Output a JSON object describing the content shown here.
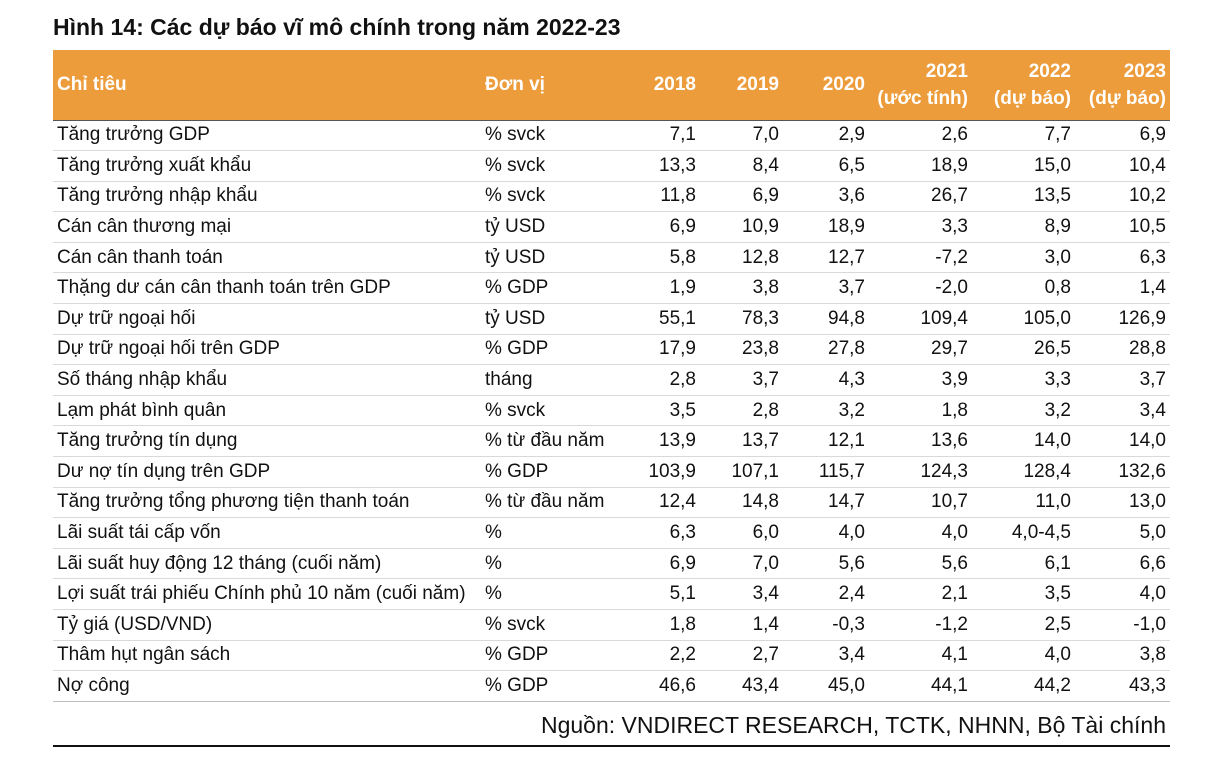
{
  "title": "Hình 14: Các dự báo vĩ mô chính trong năm 2022-23",
  "colors": {
    "header_bg": "#ED9C3B",
    "header_text": "#ffffff"
  },
  "headers": {
    "indicator": "Chỉ tiêu",
    "unit": "Đơn vị",
    "y2018": "2018",
    "y2019": "2019",
    "y2020": "2020",
    "y2021": "2021",
    "y2021_note": "(ước tính)",
    "y2022": "2022",
    "y2022_note": "(dự báo)",
    "y2023": "2023",
    "y2023_note": "(dự báo)"
  },
  "rows": [
    {
      "name": "Tăng trưởng GDP",
      "unit": "% svck",
      "v": [
        "7,1",
        "7,0",
        "2,9",
        "2,6",
        "7,7",
        "6,9"
      ]
    },
    {
      "name": "Tăng trưởng xuất khẩu",
      "unit": "% svck",
      "v": [
        "13,3",
        "8,4",
        "6,5",
        "18,9",
        "15,0",
        "10,4"
      ]
    },
    {
      "name": "Tăng trưởng nhập khẩu",
      "unit": "% svck",
      "v": [
        "11,8",
        "6,9",
        "3,6",
        "26,7",
        "13,5",
        "10,2"
      ]
    },
    {
      "name": "Cán cân thương mại",
      "unit": "tỷ USD",
      "v": [
        "6,9",
        "10,9",
        "18,9",
        "3,3",
        "8,9",
        "10,5"
      ]
    },
    {
      "name": "Cán cân thanh toán",
      "unit": "tỷ USD",
      "v": [
        "5,8",
        "12,8",
        "12,7",
        "-7,2",
        "3,0",
        "6,3"
      ]
    },
    {
      "name": "Thặng dư cán cân thanh toán trên GDP",
      "unit": "% GDP",
      "v": [
        "1,9",
        "3,8",
        "3,7",
        "-2,0",
        "0,8",
        "1,4"
      ]
    },
    {
      "name": "Dự trữ ngoại hối",
      "unit": "tỷ USD",
      "v": [
        "55,1",
        "78,3",
        "94,8",
        "109,4",
        "105,0",
        "126,9"
      ]
    },
    {
      "name": "Dự trữ ngoại hối trên GDP",
      "unit": "% GDP",
      "v": [
        "17,9",
        "23,8",
        "27,8",
        "29,7",
        "26,5",
        "28,8"
      ]
    },
    {
      "name": "Số tháng nhập khẩu",
      "unit": "tháng",
      "v": [
        "2,8",
        "3,7",
        "4,3",
        "3,9",
        "3,3",
        "3,7"
      ]
    },
    {
      "name": "Lạm phát bình quân",
      "unit": "% svck",
      "v": [
        "3,5",
        "2,8",
        "3,2",
        "1,8",
        "3,2",
        "3,4"
      ]
    },
    {
      "name": "Tăng trưởng tín dụng",
      "unit": "% từ đầu năm",
      "v": [
        "13,9",
        "13,7",
        "12,1",
        "13,6",
        "14,0",
        "14,0"
      ]
    },
    {
      "name": "Dư nợ tín dụng trên GDP",
      "unit": "% GDP",
      "v": [
        "103,9",
        "107,1",
        "115,7",
        "124,3",
        "128,4",
        "132,6"
      ]
    },
    {
      "name": "Tăng trưởng tổng phương tiện thanh toán",
      "unit": "% từ đầu năm",
      "v": [
        "12,4",
        "14,8",
        "14,7",
        "10,7",
        "11,0",
        "13,0"
      ]
    },
    {
      "name": "Lãi suất tái cấp vốn",
      "unit": "%",
      "v": [
        "6,3",
        "6,0",
        "4,0",
        "4,0",
        "4,0-4,5",
        "5,0"
      ]
    },
    {
      "name": "Lãi suất huy động 12 tháng (cuối năm)",
      "unit": "%",
      "v": [
        "6,9",
        "7,0",
        "5,6",
        "5,6",
        "6,1",
        "6,6"
      ]
    },
    {
      "name": "Lợi suất trái phiếu Chính phủ 10 năm (cuối năm)",
      "unit": "%",
      "v": [
        "5,1",
        "3,4",
        "2,4",
        "2,1",
        "3,5",
        "4,0"
      ]
    },
    {
      "name": "Tỷ giá (USD/VND)",
      "unit": "% svck",
      "v": [
        "1,8",
        "1,4",
        "-0,3",
        "-1,2",
        "2,5",
        "-1,0"
      ]
    },
    {
      "name": "Thâm hụt ngân sách",
      "unit": "% GDP",
      "v": [
        "2,2",
        "2,7",
        "3,4",
        "4,1",
        "4,0",
        "3,8"
      ]
    },
    {
      "name": "Nợ công",
      "unit": "% GDP",
      "v": [
        "46,6",
        "43,4",
        "45,0",
        "44,1",
        "44,2",
        "43,3"
      ]
    }
  ],
  "source": "Nguồn: VNDIRECT RESEARCH, TCTK, NHNN, Bộ Tài chính"
}
